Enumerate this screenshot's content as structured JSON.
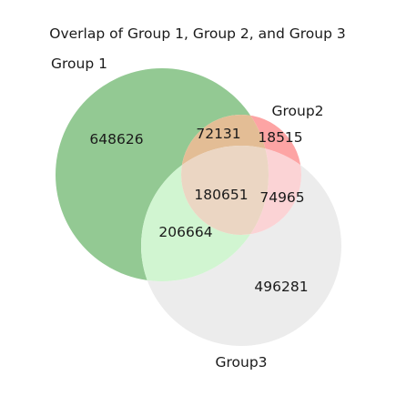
{
  "chart_data": {
    "type": "venn",
    "title": "Overlap of Group 1, Group 2, and Group 3",
    "sets": [
      {
        "name": "Group 1",
        "color": "#4caf50"
      },
      {
        "name": "Group2",
        "color": "#ff5252"
      },
      {
        "name": "Group3",
        "color": "#d9d9d9"
      }
    ],
    "regions": {
      "only_group1": "648626",
      "only_group2": "18515",
      "only_group3": "496281",
      "group1_group2": "72131",
      "group2_group3": "74965",
      "group1_group3": "206664",
      "all_three": "180651"
    },
    "region_colors": {
      "only_group1": "#93c993",
      "only_group2": "#fda4a4",
      "only_group3": "#ececec",
      "group1_group2": "#e3bd95",
      "group2_group3": "#fbd3d5",
      "group1_group3": "#d1f5d1",
      "all_three": "#ebd6c3"
    }
  }
}
